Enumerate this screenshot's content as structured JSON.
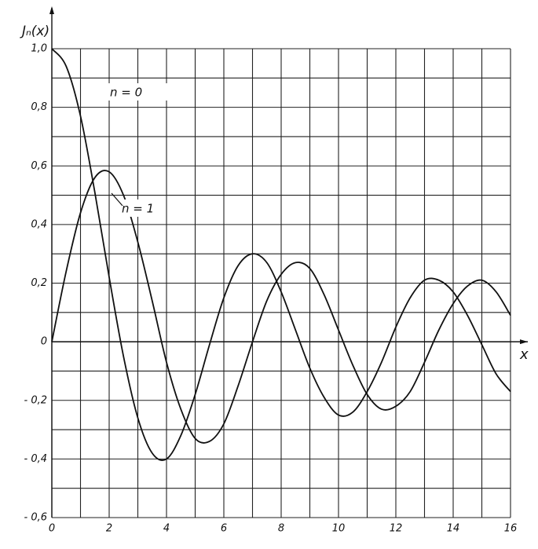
{
  "chart_data": {
    "type": "line",
    "ylabel": "Jₙ(x)",
    "xlabel": "x",
    "x": [
      0,
      0.5,
      1,
      1.5,
      2,
      2.5,
      3,
      3.5,
      4,
      4.5,
      5,
      5.5,
      6,
      6.5,
      7,
      7.5,
      8,
      8.5,
      9,
      9.5,
      10,
      10.5,
      11,
      11.5,
      12,
      12.5,
      13,
      13.5,
      14,
      14.5,
      15,
      15.5,
      16
    ],
    "series": [
      {
        "name": "n = 0",
        "color": "#111111",
        "values": [
          1.0,
          0.94,
          0.77,
          0.51,
          0.22,
          -0.05,
          -0.26,
          -0.38,
          -0.4,
          -0.32,
          -0.18,
          -0.01,
          0.15,
          0.26,
          0.3,
          0.27,
          0.17,
          0.04,
          -0.09,
          -0.19,
          -0.25,
          -0.24,
          -0.17,
          -0.07,
          0.05,
          0.15,
          0.21,
          0.21,
          0.17,
          0.09,
          -0.01,
          -0.11,
          -0.17
        ]
      },
      {
        "name": "n = 1",
        "color": "#111111",
        "values": [
          0.0,
          0.24,
          0.44,
          0.56,
          0.58,
          0.5,
          0.34,
          0.14,
          -0.07,
          -0.23,
          -0.33,
          -0.34,
          -0.28,
          -0.15,
          0.0,
          0.14,
          0.23,
          0.27,
          0.25,
          0.16,
          0.04,
          -0.08,
          -0.18,
          -0.23,
          -0.22,
          -0.17,
          -0.07,
          0.04,
          0.13,
          0.19,
          0.21,
          0.17,
          0.09
        ]
      }
    ],
    "xlim": [
      0,
      16
    ],
    "xticks": [
      0,
      2,
      4,
      6,
      8,
      10,
      12,
      14,
      16
    ],
    "ylim": [
      -0.6,
      1.0
    ],
    "yticks": [
      {
        "value": 1.0,
        "label": "1,0"
      },
      {
        "value": 0.8,
        "label": "0,8"
      },
      {
        "value": 0.6,
        "label": "0,6"
      },
      {
        "value": 0.4,
        "label": "0,4"
      },
      {
        "value": 0.2,
        "label": "0,2"
      },
      0,
      {
        "value": -0.2,
        "label": "- 0,2"
      },
      {
        "value": -0.4,
        "label": "- 0,4"
      },
      {
        "value": -0.6,
        "label": "- 0,6"
      }
    ],
    "grid": true
  }
}
